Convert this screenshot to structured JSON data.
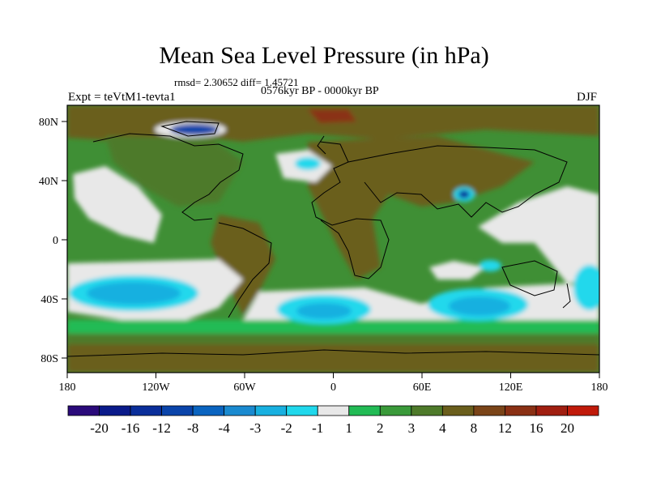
{
  "title": "Mean Sea Level Pressure (in hPa)",
  "subtitle_stats": "rmsd= 2.30652 diff= 1.45721",
  "period": "0576kyr BP - 0000kyr BP",
  "experiment": "Expt = teVtM1-tevta1",
  "season": "DJF",
  "map": {
    "lon_ticks": [
      "180",
      "120W",
      "60W",
      "0",
      "60E",
      "120E",
      "180"
    ],
    "lat_ticks": [
      "80N",
      "40N",
      "0",
      "40S",
      "80S"
    ]
  },
  "colorbar": {
    "colors": [
      "#2a0a7a",
      "#0a1a8a",
      "#0a2e9a",
      "#0a44aa",
      "#0a64c0",
      "#1a8ad0",
      "#18b0e0",
      "#20d8ec",
      "#e8e8e8",
      "#22bb55",
      "#3a9a3a",
      "#4e7a2a",
      "#6a5e1c",
      "#7a4418",
      "#8a3014",
      "#a01e10",
      "#c01a0a"
    ],
    "labels": [
      "-20",
      "-16",
      "-12",
      "-8",
      "-4",
      "-3",
      "-2",
      "-1",
      "1",
      "2",
      "3",
      "4",
      "8",
      "12",
      "16",
      "20"
    ]
  }
}
